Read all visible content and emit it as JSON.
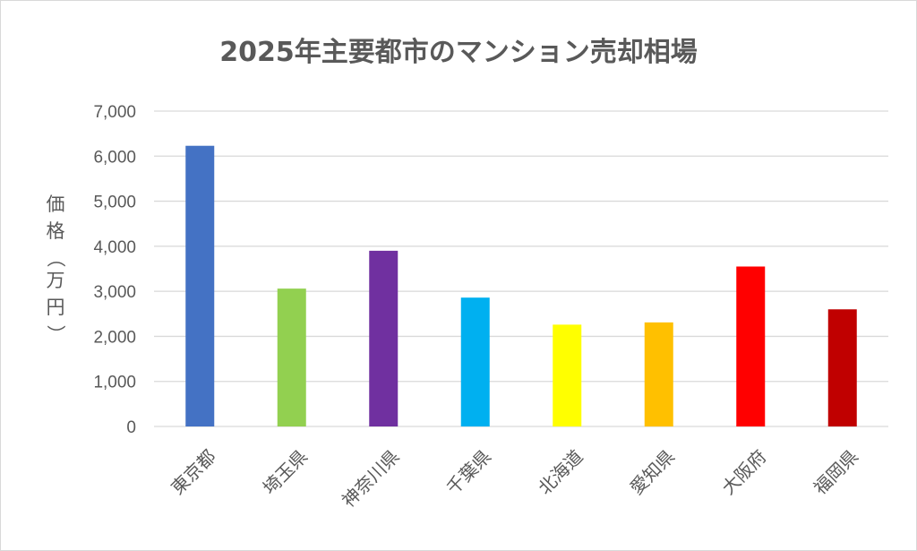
{
  "chart_data": {
    "type": "bar",
    "title": "2025年主要都市のマンション売却相場",
    "ylabel": "価格（万円）",
    "xlabel": "",
    "ylim": [
      0,
      7000
    ],
    "yticks": [
      0,
      1000,
      2000,
      3000,
      4000,
      5000,
      6000,
      7000
    ],
    "ytick_labels": [
      "0",
      "1,000",
      "2,000",
      "3,000",
      "4,000",
      "5,000",
      "6,000",
      "7,000"
    ],
    "grid": true,
    "legend": "none",
    "categories": [
      "東京都",
      "埼玉県",
      "神奈川県",
      "千葉県",
      "北海道",
      "愛知県",
      "大阪府",
      "福岡県"
    ],
    "values": [
      6230,
      3060,
      3900,
      2860,
      2260,
      2310,
      3550,
      2600
    ],
    "colors": [
      "#4472C4",
      "#92D050",
      "#7030A0",
      "#00B0F0",
      "#FFFF00",
      "#FFC000",
      "#FF0000",
      "#C00000"
    ]
  }
}
